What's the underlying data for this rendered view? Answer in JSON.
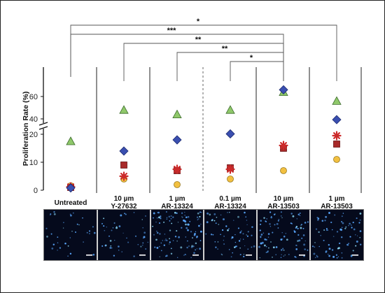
{
  "chart_data": {
    "type": "scatter",
    "ylabel": "Proliferation Rate (%)",
    "y_ticks_lower": [
      0,
      10,
      20
    ],
    "y_ticks_upper": [
      40,
      60
    ],
    "axis_break": true,
    "categories": [
      {
        "line1": "Untreated",
        "line2": ""
      },
      {
        "line1": "10 µm",
        "line2": "Y-27632"
      },
      {
        "line1": "1 µm",
        "line2": "AR-13324"
      },
      {
        "line1": "0.1 µm",
        "line2": "AR-13324"
      },
      {
        "line1": "10 µm",
        "line2": "AR-13503"
      },
      {
        "line1": "1 µm",
        "line2": "AR-13503"
      }
    ],
    "series": [
      {
        "marker": "triangle",
        "color": "#8fc86a",
        "values": [
          17.5,
          48,
          44,
          48,
          64,
          56
        ]
      },
      {
        "marker": "diamond",
        "color": "#3a4fb0",
        "values": [
          0.8,
          14,
          18,
          20.5,
          66,
          39
        ]
      },
      {
        "marker": "asterisk",
        "color": "#cc2a2a",
        "values": [
          1.2,
          5,
          7.5,
          7.5,
          16,
          19.5
        ]
      },
      {
        "marker": "square",
        "color": "#a82a2a",
        "values": [
          1.0,
          9,
          7,
          8,
          15,
          16.5
        ]
      },
      {
        "marker": "circle",
        "color": "#f2c040",
        "values": [
          1.6,
          4,
          2,
          4,
          7,
          11
        ]
      }
    ],
    "significance": [
      {
        "from": 0,
        "to": 5,
        "label": "*"
      },
      {
        "from": 0,
        "to": 4,
        "label": "***"
      },
      {
        "from": 1,
        "to": 4,
        "label": "**"
      },
      {
        "from": 2,
        "to": 4,
        "label": "**"
      },
      {
        "from": 3,
        "to": 4,
        "label": "*"
      }
    ]
  },
  "colors": {
    "micrograph_bg": "#050a1c",
    "cell_dot": "#5aa8ff",
    "scale_bar": "#ffffff"
  }
}
